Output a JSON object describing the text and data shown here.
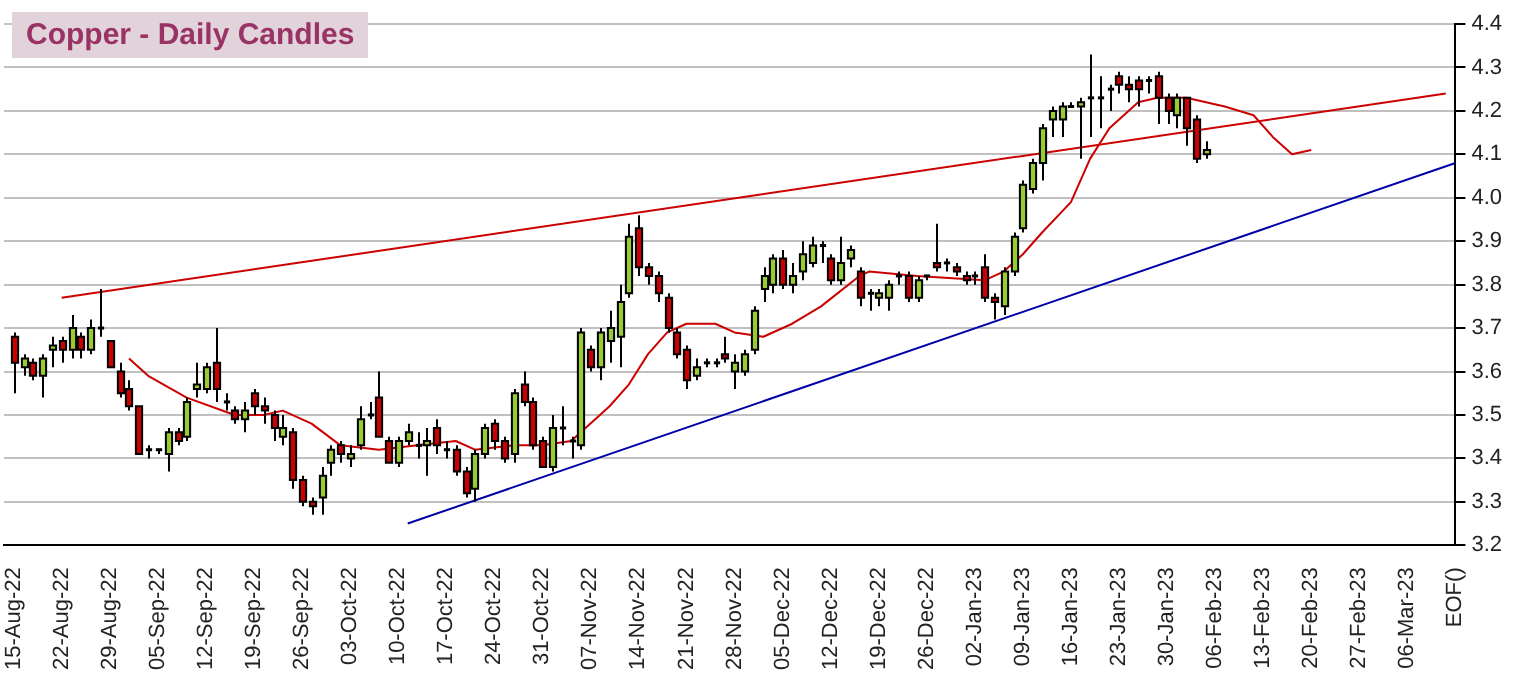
{
  "chart_data": {
    "type": "candlestick",
    "title": "Copper - Daily Candles",
    "categories": [
      "15-Aug-22",
      null,
      null,
      null,
      null,
      "22-Aug-22",
      null,
      null,
      null,
      null,
      "29-Aug-22",
      null,
      null,
      null,
      null,
      "05-Sep-22",
      null,
      null,
      null,
      null,
      "12-Sep-22",
      null,
      null,
      null,
      null,
      "19-Sep-22",
      null,
      null,
      null,
      null,
      "26-Sep-22",
      null,
      null,
      null,
      null,
      "03-Oct-22",
      null,
      null,
      null,
      null,
      "10-Oct-22",
      null,
      null,
      null,
      null,
      "17-Oct-22",
      null,
      null,
      null,
      null,
      "24-Oct-22",
      null,
      null,
      null,
      null,
      "31-Oct-22",
      null,
      null,
      null,
      null,
      "07-Nov-22",
      null,
      null,
      null,
      null,
      "14-Nov-22",
      null,
      null,
      null,
      null,
      "21-Nov-22",
      null,
      null,
      null,
      null,
      "28-Nov-22",
      null,
      null,
      null,
      null,
      "05-Dec-22",
      null,
      null,
      null,
      null,
      "12-Dec-22",
      null,
      null,
      null,
      null,
      "19-Dec-22",
      null,
      null,
      null,
      null,
      "26-Dec-22",
      null,
      null,
      null,
      null,
      "02-Jan-23",
      null,
      null,
      null,
      null,
      "09-Jan-23",
      null,
      null,
      null,
      null,
      "16-Jan-23",
      null,
      null,
      null,
      null,
      "23-Jan-23",
      null,
      null,
      null,
      null,
      "30-Jan-23",
      null,
      null,
      null,
      null,
      "06-Feb-23",
      null,
      null,
      null,
      null,
      "13-Feb-23",
      null,
      null,
      null,
      null,
      "20-Feb-23",
      null,
      null,
      null,
      null,
      "27-Feb-23",
      null,
      null,
      null,
      null,
      "06-Mar-23",
      null,
      null,
      null,
      null,
      "EOF()"
    ],
    "ohlc": [
      [
        3.68,
        3.69,
        3.55,
        3.62
      ],
      [
        3.61,
        3.64,
        3.59,
        3.63
      ],
      [
        3.62,
        3.63,
        3.58,
        3.59
      ],
      [
        3.59,
        3.64,
        3.54,
        3.63
      ],
      [
        3.65,
        3.68,
        3.61,
        3.66
      ],
      [
        3.67,
        3.68,
        3.62,
        3.65
      ],
      [
        3.65,
        3.73,
        3.63,
        3.7
      ],
      [
        3.68,
        3.69,
        3.63,
        3.65
      ],
      [
        3.65,
        3.72,
        3.64,
        3.7
      ],
      [
        3.7,
        3.79,
        3.68,
        3.7
      ],
      [
        3.67,
        3.67,
        3.61,
        3.61
      ],
      [
        3.6,
        3.62,
        3.54,
        3.55
      ],
      [
        3.56,
        3.58,
        3.51,
        3.52
      ],
      [
        3.52,
        3.52,
        3.41,
        3.41
      ],
      [
        3.42,
        3.43,
        3.4,
        3.42
      ],
      [
        3.42,
        3.42,
        3.41,
        3.42
      ],
      [
        3.41,
        3.47,
        3.37,
        3.46
      ],
      [
        3.46,
        3.47,
        3.43,
        3.44
      ],
      [
        3.45,
        3.54,
        3.44,
        3.53
      ],
      [
        3.56,
        3.62,
        3.54,
        3.57
      ],
      [
        3.56,
        3.62,
        3.55,
        3.61
      ],
      [
        3.62,
        3.7,
        3.53,
        3.56
      ],
      [
        3.53,
        3.55,
        3.51,
        3.53
      ],
      [
        3.51,
        3.52,
        3.48,
        3.49
      ],
      [
        3.49,
        3.53,
        3.46,
        3.51
      ],
      [
        3.55,
        3.56,
        3.5,
        3.52
      ],
      [
        3.52,
        3.54,
        3.48,
        3.51
      ],
      [
        3.5,
        3.51,
        3.44,
        3.47
      ],
      [
        3.45,
        3.5,
        3.43,
        3.47
      ],
      [
        3.46,
        3.47,
        3.33,
        3.35
      ],
      [
        3.35,
        3.36,
        3.29,
        3.3
      ],
      [
        3.3,
        3.31,
        3.27,
        3.29
      ],
      [
        3.31,
        3.38,
        3.27,
        3.36
      ],
      [
        3.39,
        3.43,
        3.36,
        3.42
      ],
      [
        3.43,
        3.44,
        3.39,
        3.41
      ],
      [
        3.4,
        3.43,
        3.38,
        3.41
      ],
      [
        3.43,
        3.52,
        3.42,
        3.49
      ],
      [
        3.5,
        3.53,
        3.49,
        3.5
      ],
      [
        3.54,
        3.6,
        3.45,
        3.45
      ],
      [
        3.44,
        3.45,
        3.39,
        3.39
      ],
      [
        3.39,
        3.45,
        3.38,
        3.44
      ],
      [
        3.44,
        3.48,
        3.43,
        3.46
      ],
      [
        3.43,
        3.46,
        3.4,
        3.43
      ],
      [
        3.43,
        3.47,
        3.36,
        3.44
      ],
      [
        3.47,
        3.49,
        3.41,
        3.43
      ],
      [
        3.42,
        3.44,
        3.4,
        3.42
      ],
      [
        3.42,
        3.43,
        3.36,
        3.37
      ],
      [
        3.37,
        3.38,
        3.31,
        3.32
      ],
      [
        3.33,
        3.42,
        3.3,
        3.41
      ],
      [
        3.41,
        3.48,
        3.4,
        3.47
      ],
      [
        3.48,
        3.49,
        3.42,
        3.44
      ],
      [
        3.44,
        3.45,
        3.39,
        3.4
      ],
      [
        3.41,
        3.56,
        3.39,
        3.55
      ],
      [
        3.57,
        3.6,
        3.52,
        3.53
      ],
      [
        3.53,
        3.54,
        3.42,
        3.43
      ],
      [
        3.44,
        3.45,
        3.38,
        3.38
      ],
      [
        3.38,
        3.5,
        3.37,
        3.47
      ],
      [
        3.47,
        3.52,
        3.43,
        3.47
      ],
      [
        3.44,
        3.45,
        3.4,
        3.44
      ],
      [
        3.43,
        3.7,
        3.42,
        3.69
      ],
      [
        3.65,
        3.66,
        3.6,
        3.61
      ],
      [
        3.61,
        3.7,
        3.58,
        3.69
      ],
      [
        3.67,
        3.74,
        3.62,
        3.7
      ],
      [
        3.68,
        3.8,
        3.61,
        3.76
      ],
      [
        3.78,
        3.94,
        3.77,
        3.91
      ],
      [
        3.93,
        3.96,
        3.82,
        3.84
      ],
      [
        3.84,
        3.85,
        3.8,
        3.82
      ],
      [
        3.82,
        3.83,
        3.76,
        3.78
      ],
      [
        3.77,
        3.78,
        3.69,
        3.7
      ],
      [
        3.69,
        3.7,
        3.63,
        3.64
      ],
      [
        3.65,
        3.66,
        3.56,
        3.58
      ],
      [
        3.59,
        3.63,
        3.58,
        3.61
      ],
      [
        3.62,
        3.63,
        3.61,
        3.62
      ],
      [
        3.62,
        3.63,
        3.61,
        3.62
      ],
      [
        3.64,
        3.68,
        3.62,
        3.63
      ],
      [
        3.6,
        3.64,
        3.56,
        3.62
      ],
      [
        3.6,
        3.65,
        3.59,
        3.64
      ],
      [
        3.65,
        3.75,
        3.64,
        3.74
      ],
      [
        3.79,
        3.84,
        3.76,
        3.82
      ],
      [
        3.8,
        3.87,
        3.78,
        3.86
      ],
      [
        3.86,
        3.88,
        3.79,
        3.8
      ],
      [
        3.8,
        3.85,
        3.78,
        3.82
      ],
      [
        3.83,
        3.9,
        3.81,
        3.87
      ],
      [
        3.85,
        3.91,
        3.84,
        3.89
      ],
      [
        3.89,
        3.9,
        3.85,
        3.89
      ],
      [
        3.86,
        3.87,
        3.8,
        3.81
      ],
      [
        3.81,
        3.91,
        3.8,
        3.85
      ],
      [
        3.86,
        3.89,
        3.84,
        3.88
      ],
      [
        3.83,
        3.84,
        3.75,
        3.77
      ],
      [
        3.78,
        3.79,
        3.74,
        3.78
      ],
      [
        3.77,
        3.79,
        3.75,
        3.78
      ],
      [
        3.77,
        3.81,
        3.74,
        3.8
      ],
      [
        3.82,
        3.83,
        3.8,
        3.82
      ],
      [
        3.82,
        3.83,
        3.76,
        3.77
      ],
      [
        3.77,
        3.82,
        3.76,
        3.81
      ],
      [
        3.82,
        3.82,
        3.81,
        3.82
      ],
      [
        3.85,
        3.94,
        3.83,
        3.84
      ],
      [
        3.85,
        3.86,
        3.83,
        3.85
      ],
      [
        3.84,
        3.85,
        3.82,
        3.83
      ],
      [
        3.82,
        3.83,
        3.8,
        3.81
      ],
      [
        3.82,
        3.83,
        3.8,
        3.82
      ],
      [
        3.84,
        3.87,
        3.76,
        3.77
      ],
      [
        3.77,
        3.78,
        3.72,
        3.76
      ],
      [
        3.75,
        3.84,
        3.73,
        3.83
      ],
      [
        3.83,
        3.92,
        3.82,
        3.91
      ],
      [
        3.93,
        4.04,
        3.92,
        4.03
      ],
      [
        4.02,
        4.09,
        4.01,
        4.08
      ],
      [
        4.08,
        4.17,
        4.04,
        4.16
      ],
      [
        4.18,
        4.21,
        4.14,
        4.2
      ],
      [
        4.18,
        4.22,
        4.14,
        4.21
      ],
      [
        4.21,
        4.22,
        4.21,
        4.21
      ],
      [
        4.21,
        4.23,
        4.09,
        4.22
      ],
      [
        4.23,
        4.33,
        4.14,
        4.23
      ],
      [
        4.23,
        4.28,
        4.16,
        4.23
      ],
      [
        4.25,
        4.26,
        4.2,
        4.25
      ],
      [
        4.28,
        4.29,
        4.24,
        4.26
      ],
      [
        4.26,
        4.28,
        4.22,
        4.25
      ],
      [
        4.27,
        4.28,
        4.21,
        4.25
      ],
      [
        4.27,
        4.28,
        4.24,
        4.27
      ],
      [
        4.28,
        4.29,
        4.17,
        4.23
      ],
      [
        4.23,
        4.24,
        4.17,
        4.2
      ],
      [
        4.19,
        4.24,
        4.16,
        4.23
      ],
      [
        4.23,
        4.23,
        4.12,
        4.16
      ],
      [
        4.18,
        4.19,
        4.08,
        4.09
      ],
      [
        4.1,
        4.13,
        4.09,
        4.11
      ],
      null,
      null,
      null,
      null,
      null,
      null,
      null,
      null,
      null,
      null,
      null,
      null,
      null,
      null,
      null,
      null,
      null,
      null,
      null,
      null,
      null,
      null,
      null,
      null,
      null,
      null
    ],
    "series": [
      {
        "type": "line",
        "color": "#cc0000",
        "values": [
          null,
          null,
          null,
          null,
          null,
          null,
          null,
          null,
          null,
          null,
          null,
          null,
          3.63,
          null,
          3.59,
          null,
          null,
          null,
          3.54,
          null,
          null,
          null,
          null,
          3.5,
          null,
          null,
          3.5,
          null,
          3.51,
          null,
          null,
          3.48,
          null,
          null,
          3.43,
          null,
          null,
          null,
          3.42,
          null,
          null,
          null,
          3.43,
          null,
          null,
          null,
          3.44,
          null,
          3.42,
          null,
          null,
          null,
          3.43,
          null,
          null,
          3.43,
          null,
          null,
          3.44,
          null,
          null,
          3.5,
          3.52,
          null,
          3.57,
          null,
          3.64,
          null,
          3.69,
          null,
          3.71,
          null,
          null,
          3.71,
          null,
          3.69,
          null,
          null,
          3.68,
          null,
          null,
          3.71,
          null,
          null,
          3.75,
          null,
          null,
          null,
          3.82,
          3.83,
          null,
          null,
          null,
          null,
          3.82,
          null,
          null,
          null,
          null,
          null,
          null,
          3.81,
          null,
          3.83,
          null,
          3.87,
          null,
          3.92,
          null,
          null,
          3.99,
          null,
          4.09,
          null,
          4.16,
          null,
          null,
          4.22,
          null,
          4.23,
          null,
          null,
          4.23,
          null,
          null,
          null,
          4.21,
          null,
          null,
          4.19,
          null,
          4.14,
          null,
          4.1,
          null,
          4.11,
          null,
          null,
          null,
          null,
          null,
          null,
          null,
          null,
          null,
          null,
          null,
          null,
          null,
          null,
          null
        ]
      },
      {
        "type": "line",
        "color": "#cc0000",
        "values": [
          null,
          null,
          null,
          null,
          null,
          3.77,
          null,
          null,
          null,
          null,
          null,
          null,
          null,
          null,
          null,
          null,
          null,
          null,
          null,
          null,
          null,
          null,
          null,
          null,
          null,
          null,
          null,
          null,
          null,
          null,
          null,
          null,
          null,
          null,
          null,
          null,
          null,
          null,
          null,
          null,
          null,
          null,
          null,
          null,
          null,
          null,
          null,
          null,
          null,
          null,
          null,
          null,
          null,
          null,
          null,
          null,
          null,
          null,
          null,
          null,
          null,
          null,
          null,
          null,
          null,
          null,
          null,
          null,
          null,
          null,
          null,
          null,
          null,
          null,
          null,
          null,
          null,
          null,
          null,
          null,
          null,
          null,
          null,
          null,
          null,
          null,
          null,
          null,
          null,
          null,
          null,
          null,
          null,
          null,
          null,
          null,
          null,
          null,
          null,
          null,
          null,
          null,
          null,
          null,
          null,
          null,
          null,
          null,
          null,
          null,
          null,
          null,
          null,
          null,
          null,
          null,
          null,
          null,
          null,
          null,
          null,
          null,
          null,
          null,
          null,
          null,
          null,
          null,
          null,
          null,
          null,
          null,
          null,
          null,
          null,
          null,
          null,
          null,
          null,
          null,
          null,
          null,
          null,
          null,
          null,
          null,
          null,
          null,
          null,
          4.24,
          null
        ]
      },
      {
        "type": "line",
        "color": "#0000aa",
        "values": [
          null,
          null,
          null,
          null,
          null,
          null,
          null,
          null,
          null,
          null,
          null,
          null,
          null,
          null,
          null,
          null,
          null,
          null,
          null,
          null,
          null,
          null,
          null,
          null,
          null,
          null,
          null,
          null,
          null,
          null,
          null,
          null,
          null,
          null,
          null,
          null,
          null,
          null,
          null,
          null,
          null,
          3.25,
          null,
          null,
          null,
          null,
          null,
          null,
          null,
          null,
          null,
          null,
          null,
          null,
          null,
          null,
          null,
          null,
          null,
          null,
          null,
          null,
          null,
          null,
          null,
          null,
          null,
          null,
          null,
          null,
          null,
          null,
          null,
          null,
          null,
          null,
          null,
          null,
          null,
          null,
          null,
          null,
          null,
          null,
          null,
          null,
          null,
          null,
          null,
          null,
          null,
          null,
          null,
          null,
          null,
          null,
          null,
          null,
          null,
          null,
          null,
          null,
          null,
          null,
          null,
          null,
          null,
          null,
          null,
          null,
          null,
          null,
          null,
          null,
          null,
          null,
          null,
          null,
          null,
          null,
          null,
          null,
          null,
          null,
          null,
          null,
          null,
          null,
          null,
          null,
          null,
          null,
          null,
          null,
          null,
          null,
          null,
          null,
          null,
          null,
          null,
          null,
          null,
          null,
          null,
          null,
          null,
          null,
          null,
          null,
          4.08
        ]
      }
    ],
    "ylim": [
      3.2,
      4.4
    ],
    "yticks": [
      3.2,
      3.3,
      3.4,
      3.5,
      3.6,
      3.7,
      3.8,
      3.9,
      {
        "value": 4,
        "label": "4.0"
      },
      4.1,
      4.2,
      4.3,
      4.4
    ],
    "grid": "y"
  }
}
